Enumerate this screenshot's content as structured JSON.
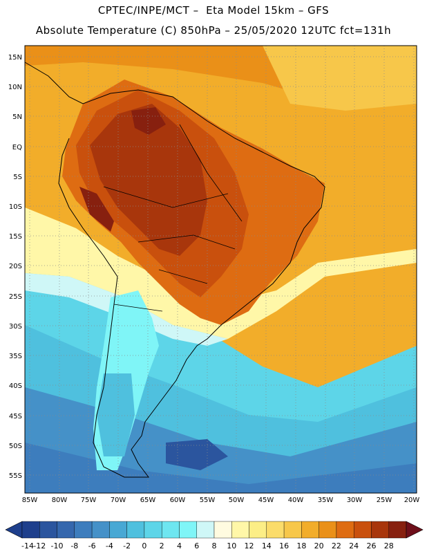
{
  "header": {
    "line1": "CPTEC/INPE/MCT –  Eta Model 15km – GFS",
    "line2": "Absolute Temperature (C) 850hPa – 25/05/2020 12UTC fct=131h"
  },
  "axes": {
    "lat_labels": [
      "15N",
      "10N",
      "5N",
      "EQ",
      "5S",
      "10S",
      "15S",
      "20S",
      "25S",
      "30S",
      "35S",
      "40S",
      "45S",
      "50S",
      "55S"
    ],
    "lon_labels": [
      "85W",
      "80W",
      "75W",
      "70W",
      "65W",
      "60W",
      "55W",
      "50W",
      "45W",
      "40W",
      "35W",
      "30W",
      "25W",
      "20W"
    ]
  },
  "legend": {
    "labels": [
      "-14",
      "-12",
      "-10",
      "-8",
      "-6",
      "-4",
      "-2",
      "0",
      "2",
      "4",
      "6",
      "8",
      "10",
      "12",
      "14",
      "16",
      "18",
      "20",
      "22",
      "24",
      "26",
      "28"
    ],
    "colors": [
      "#1e3f8c",
      "#2b559e",
      "#3567ad",
      "#3d7dbd",
      "#4591c8",
      "#48a8d4",
      "#4fc0de",
      "#5dd5e8",
      "#6ee6f0",
      "#7ff5f7",
      "#cff7f7",
      "#fffbe0",
      "#fff7a8",
      "#fcee86",
      "#fbdc6a",
      "#f7c74a",
      "#f2ad2a",
      "#ea9018",
      "#de6c12",
      "#c9500d",
      "#a8360c",
      "#87200f"
    ]
  }
}
